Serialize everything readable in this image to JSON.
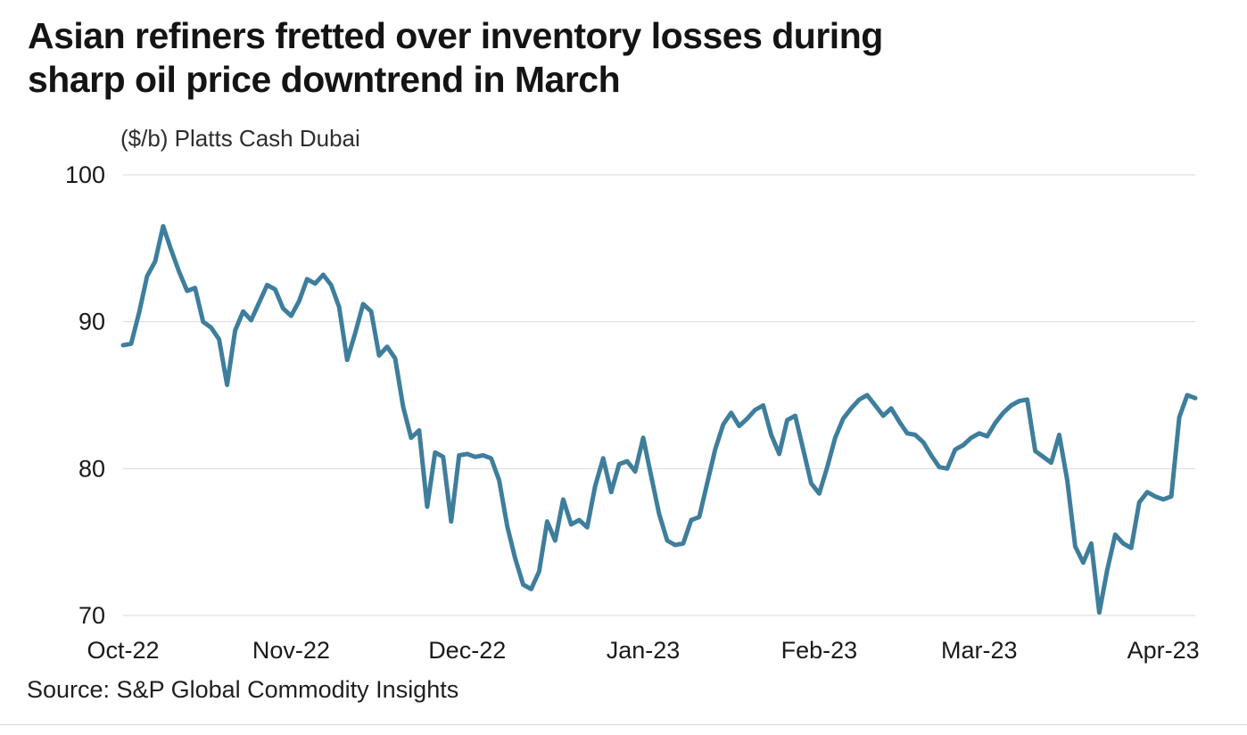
{
  "header": {
    "title_line1": "Asian refiners fretted over inventory losses during",
    "title_line2": "sharp oil price downtrend in March",
    "subtitle": "($/b) Platts Cash Dubai"
  },
  "footer": {
    "source": "Source: S&P Global Commodity Insights"
  },
  "chart_data": {
    "type": "line",
    "title": "Asian refiners fretted over inventory losses during sharp oil price downtrend in March",
    "ylabel": "($/b) Platts Cash Dubai",
    "series_name": "Platts Cash Dubai",
    "line_color": "#3E7E9C",
    "grid_color": "#d9d9d9",
    "ylim": [
      70,
      100
    ],
    "y_ticks": [
      100,
      90,
      80,
      70
    ],
    "grid": true,
    "legend": "none",
    "x_ticks": [
      {
        "label": "Oct-22",
        "index": 0
      },
      {
        "label": "Nov-22",
        "index": 21
      },
      {
        "label": "Dec-22",
        "index": 43
      },
      {
        "label": "Jan-23",
        "index": 65
      },
      {
        "label": "Feb-23",
        "index": 87
      },
      {
        "label": "Mar-23",
        "index": 107
      },
      {
        "label": "Apr-23",
        "index": 130
      }
    ],
    "values": [
      88.4,
      88.5,
      90.6,
      93.1,
      94.1,
      96.5,
      94.9,
      93.4,
      92.1,
      92.3,
      90.0,
      89.6,
      88.8,
      85.7,
      89.4,
      90.7,
      90.1,
      91.3,
      92.5,
      92.2,
      90.9,
      90.4,
      91.4,
      92.9,
      92.6,
      93.2,
      92.5,
      91.0,
      87.4,
      89.2,
      91.2,
      90.7,
      87.7,
      88.3,
      87.5,
      84.2,
      82.1,
      82.6,
      77.4,
      81.1,
      80.8,
      76.4,
      80.9,
      81.0,
      80.8,
      80.9,
      80.7,
      79.2,
      76.1,
      73.9,
      72.1,
      71.8,
      73.0,
      76.4,
      75.1,
      77.9,
      76.2,
      76.5,
      76.0,
      78.8,
      80.7,
      78.4,
      80.3,
      80.5,
      79.8,
      82.1,
      79.5,
      76.9,
      75.1,
      74.8,
      74.9,
      76.5,
      76.7,
      79.0,
      81.3,
      83.0,
      83.8,
      82.9,
      83.4,
      84.0,
      84.3,
      82.3,
      81.0,
      83.3,
      83.6,
      81.3,
      79.0,
      78.3,
      80.1,
      82.1,
      83.4,
      84.1,
      84.7,
      85.0,
      84.3,
      83.6,
      84.1,
      83.2,
      82.4,
      82.3,
      81.8,
      80.9,
      80.1,
      80.0,
      81.3,
      81.6,
      82.1,
      82.4,
      82.2,
      83.1,
      83.8,
      84.3,
      84.6,
      84.7,
      81.2,
      80.8,
      80.4,
      82.3,
      79.2,
      74.7,
      73.6,
      74.9,
      70.2,
      73.1,
      75.5,
      74.9,
      74.6,
      77.7,
      78.4,
      78.1,
      77.9,
      78.1,
      83.5,
      85.0,
      84.8
    ]
  }
}
